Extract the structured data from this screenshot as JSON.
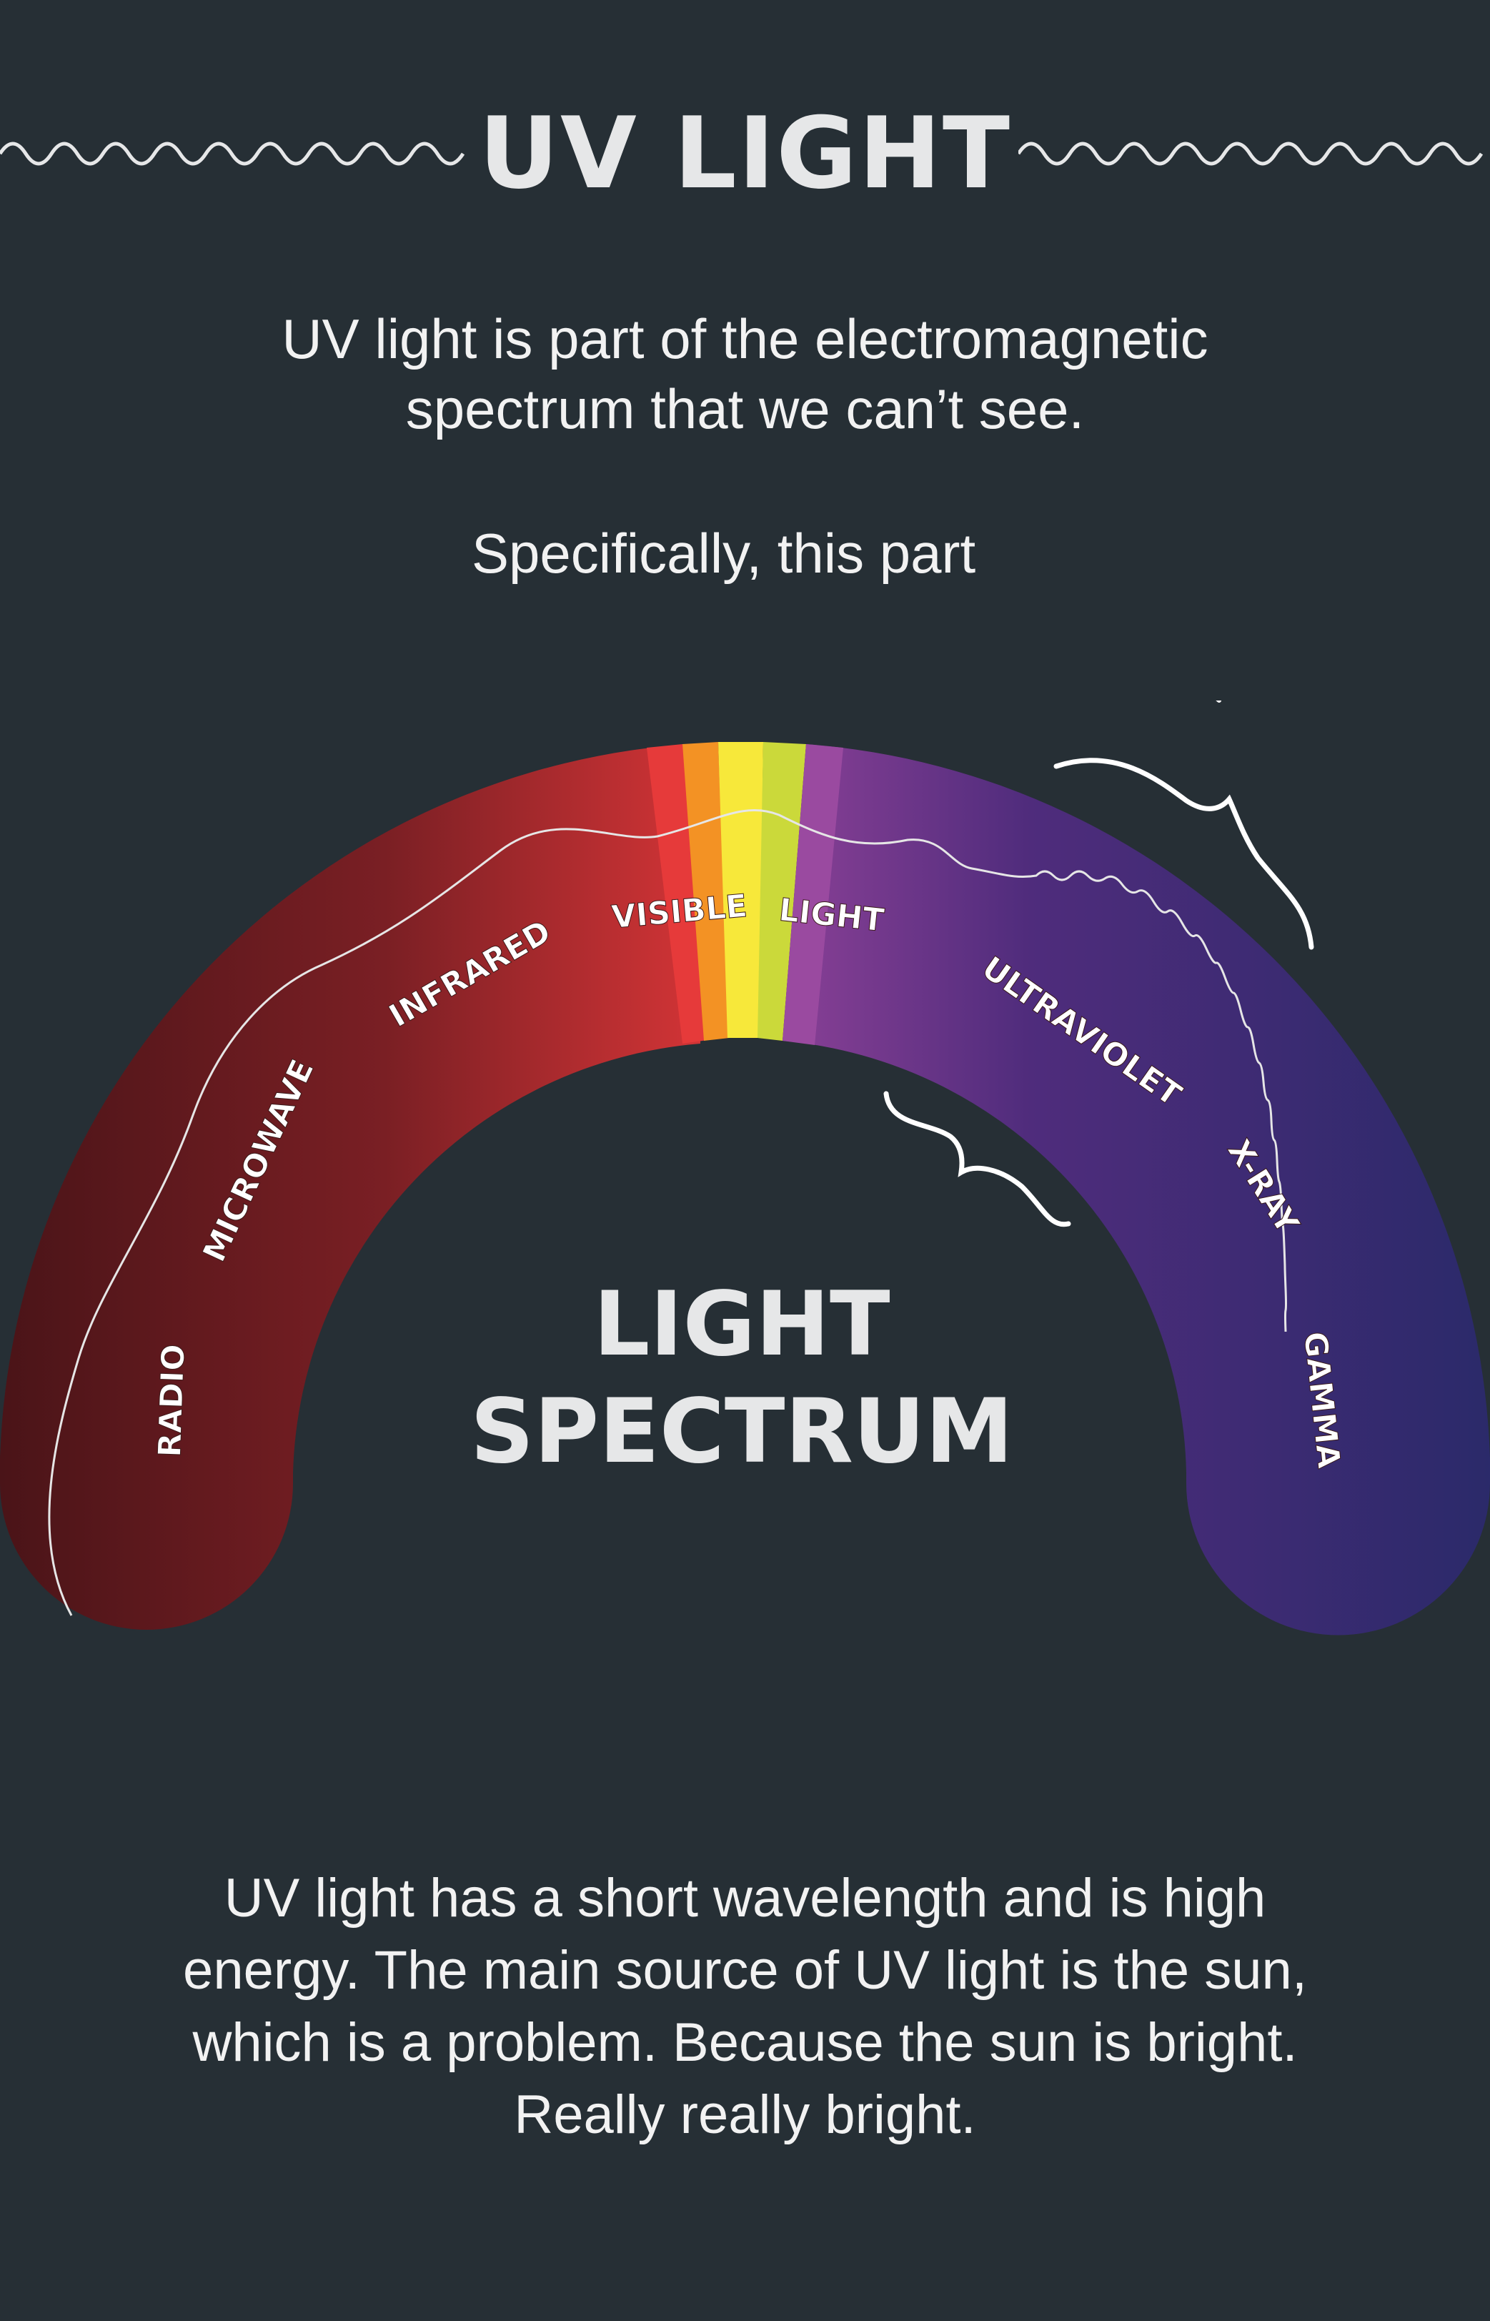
{
  "title": "UV LIGHT",
  "intro": {
    "line1": "UV light is part of the electromagnetic",
    "line2": "spectrum that we can’t see."
  },
  "pointer_text": "Specifically, this part",
  "spectrum": {
    "title_line1": "LIGHT",
    "title_line2": "SPECTRUM",
    "bands": [
      "RADIO",
      "MICROWAVE",
      "INFRARED",
      "VISIBLE",
      "LIGHT",
      "ULTRAVIOLET",
      "X-RAY",
      "GAMMA"
    ],
    "colors": {
      "radio": "#4a1418",
      "infrared": "#a02a2e",
      "red": "#e63a3a",
      "orange": "#f39224",
      "yellow": "#f7e83a",
      "lime": "#cbd93a",
      "violet": "#9a4aa0",
      "ultraviolet": "#4d2c78",
      "gamma": "#2b2a6a"
    }
  },
  "bottom": {
    "line1": "UV light has a short wavelength and is high",
    "line2": "energy. The main source of UV light is the sun,",
    "line3": "which is a problem. Because the sun is bright.",
    "line4": "Really really bright."
  }
}
